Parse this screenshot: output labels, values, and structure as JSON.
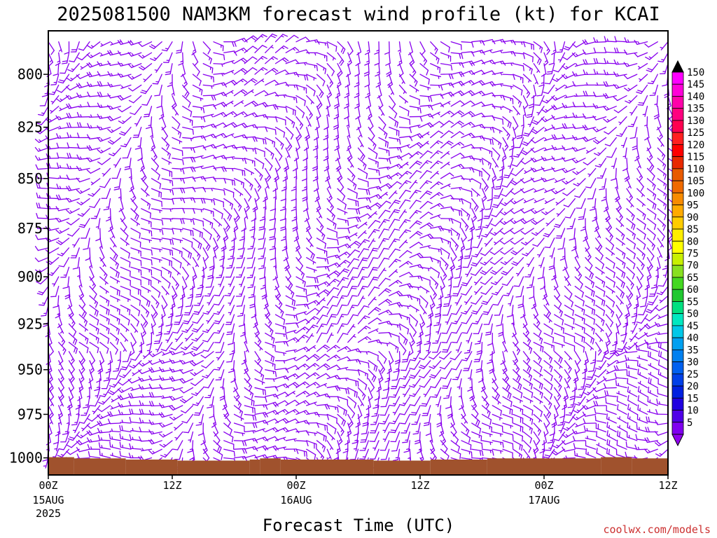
{
  "header": {
    "title": "2025081500 NAM3KM forecast wind profile (kt) for KCAI"
  },
  "footer": {
    "xlabel": "Forecast Time (UTC)",
    "credit": "coolwx.com/models"
  },
  "chart_data": {
    "type": "wind-barb-profile",
    "title": "2025081500 NAM3KM forecast wind profile (kt) for KCAI",
    "xlabel": "Forecast Time (UTC)",
    "ylabel": "",
    "xlim_hours": [
      0,
      60
    ],
    "x_ticks": [
      {
        "hour": 0,
        "label": "00Z",
        "sub": [
          "15AUG",
          "2025"
        ]
      },
      {
        "hour": 12,
        "label": "12Z",
        "sub": []
      },
      {
        "hour": 24,
        "label": "00Z",
        "sub": [
          "16AUG"
        ]
      },
      {
        "hour": 36,
        "label": "12Z",
        "sub": []
      },
      {
        "hour": 48,
        "label": "00Z",
        "sub": [
          "17AUG"
        ]
      },
      {
        "hour": 60,
        "label": "12Z",
        "sub": []
      }
    ],
    "y_ticks": [
      800,
      825,
      850,
      875,
      900,
      925,
      950,
      975,
      1000
    ],
    "ylim_hpa": [
      780,
      1010
    ],
    "y_scale": "log-pressure",
    "barb_color": "#8800ee",
    "terrain_color": "#a0522d",
    "colorbar": {
      "labels": [
        "150",
        "145",
        "140",
        "135",
        "130",
        "125",
        "120",
        "115",
        "110",
        "105",
        "100",
        "95",
        "90",
        "85",
        "80",
        "75",
        "70",
        "65",
        "60",
        "55",
        "50",
        "45",
        "40",
        "35",
        "30",
        "25",
        "20",
        "15",
        "10",
        "5"
      ],
      "colors": [
        "#ff00ff",
        "#ff00d8",
        "#ff00aa",
        "#ff0080",
        "#ff0050",
        "#ff2020",
        "#ff0000",
        "#e82800",
        "#e85a00",
        "#f06a00",
        "#f88c00",
        "#ffaa00",
        "#ffcc00",
        "#ffee00",
        "#ffff00",
        "#c8f000",
        "#88e020",
        "#44d820",
        "#20c830",
        "#00e080",
        "#00e8c0",
        "#00c8e8",
        "#00a0f0",
        "#0080f0",
        "#0060f0",
        "#0040e8",
        "#0020e0",
        "#2000e0",
        "#5000e8",
        "#8000f0"
      ],
      "top_arrow_color": "#000000",
      "bottom_arrow_color": "#9000f0"
    },
    "wind": {
      "hours": [
        0,
        1,
        2,
        3,
        4,
        5,
        6,
        7,
        8,
        9,
        10,
        11,
        12,
        13,
        14,
        15,
        16,
        17,
        18,
        19,
        20,
        21,
        22,
        23,
        24,
        25,
        26,
        27,
        28,
        29,
        30,
        31,
        32,
        33,
        34,
        35,
        36,
        37,
        38,
        39,
        40,
        41,
        42,
        43,
        44,
        45,
        46,
        47,
        48,
        49,
        50,
        51,
        52,
        53,
        54,
        55,
        56,
        57,
        58,
        59,
        60
      ],
      "levels_hpa": [
        1000,
        995,
        990,
        985,
        980,
        975,
        970,
        965,
        960,
        955,
        950,
        945,
        940,
        935,
        930,
        925,
        920,
        915,
        910,
        905,
        900,
        895,
        890,
        885,
        880,
        875,
        870,
        865,
        860,
        855,
        850,
        845,
        840,
        835,
        830,
        825,
        820,
        815,
        810,
        805,
        800,
        795,
        790,
        785
      ],
      "speed_range_kt": [
        5,
        20
      ]
    },
    "surface_pressure_hpa": [
      {
        "from_hour": 0,
        "to_hour": 2.5,
        "p": 999.6
      },
      {
        "from_hour": 2.5,
        "to_hour": 7.5,
        "p": 1000.3
      },
      {
        "from_hour": 7.5,
        "to_hour": 12.5,
        "p": 1001.0
      },
      {
        "from_hour": 12.5,
        "to_hour": 19.5,
        "p": 1001.6
      },
      {
        "from_hour": 19.5,
        "to_hour": 20.5,
        "p": 1001.0
      },
      {
        "from_hour": 20.5,
        "to_hour": 22.5,
        "p": 1000.3
      },
      {
        "from_hour": 22.5,
        "to_hour": 31.5,
        "p": 1001.0
      },
      {
        "from_hour": 31.5,
        "to_hour": 37.0,
        "p": 1001.6
      },
      {
        "from_hour": 37.0,
        "to_hour": 42.5,
        "p": 1001.0
      },
      {
        "from_hour": 42.5,
        "to_hour": 53.5,
        "p": 1000.3
      },
      {
        "from_hour": 53.5,
        "to_hour": 56.5,
        "p": 999.6
      },
      {
        "from_hour": 56.5,
        "to_hour": 60.0,
        "p": 1000.3
      }
    ]
  }
}
